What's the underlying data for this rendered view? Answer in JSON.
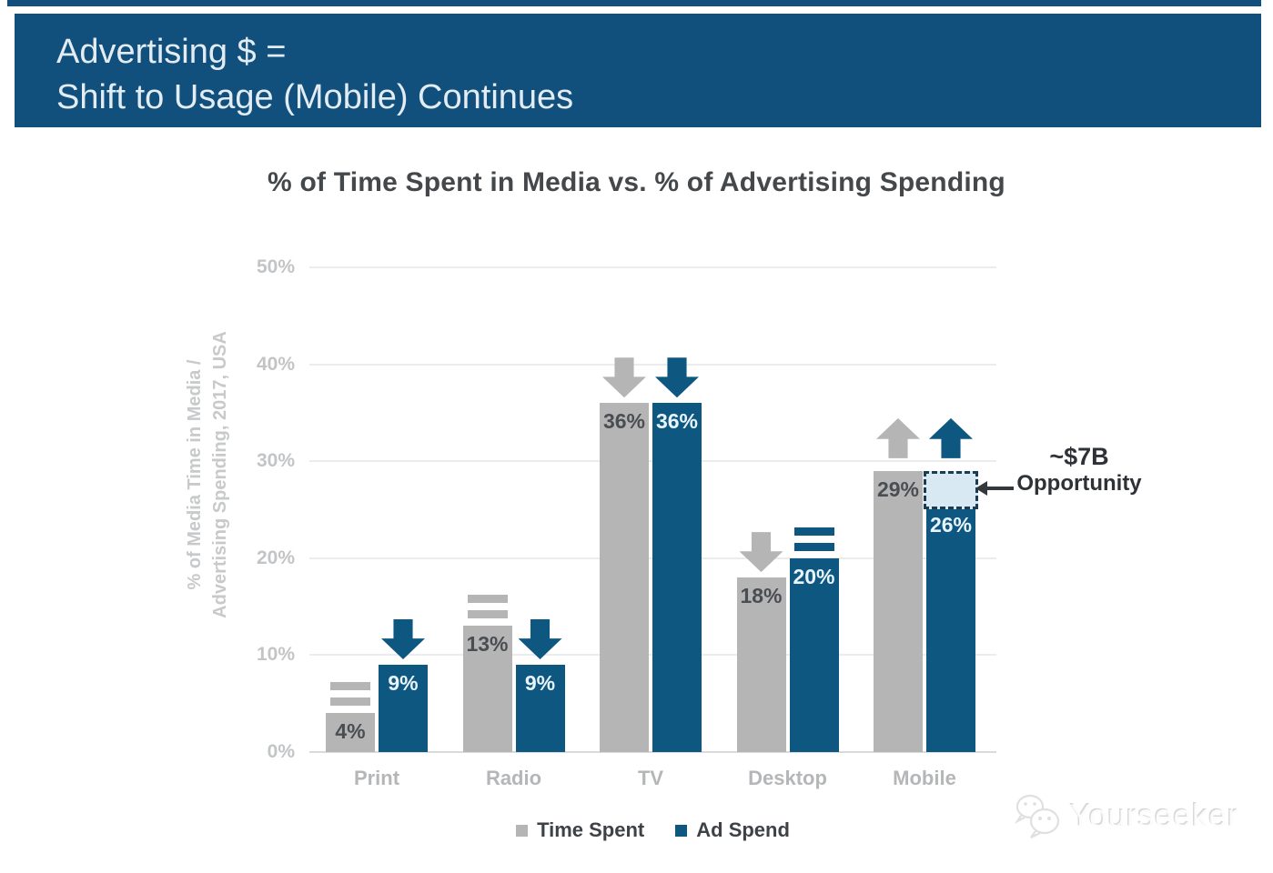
{
  "colors": {
    "banner_bg": "#11507C",
    "time_spent": "#B5B5B5",
    "ad_spend": "#0E5781",
    "opportunity_fill": "#D8E9F4",
    "opportunity_border": "#1C3C52"
  },
  "banner": {
    "line1": "Advertising $ =",
    "line2": "Shift to Usage (Mobile) Continues"
  },
  "chart_data": {
    "type": "bar",
    "title": "% of Time Spent in Media vs. % of Advertising Spending",
    "ylabel_lines": [
      "% of Media Time in Media /",
      "Advertising Spending, 2017, USA"
    ],
    "ylim": [
      0,
      50
    ],
    "yticks": [
      0,
      10,
      20,
      30,
      40,
      50
    ],
    "ytick_suffix": "%",
    "grid": true,
    "categories": [
      "Print",
      "Radio",
      "TV",
      "Desktop",
      "Mobile"
    ],
    "series": [
      {
        "name": "Time Spent",
        "color": "#B5B5B5",
        "values": [
          4,
          13,
          36,
          18,
          29
        ],
        "labels": [
          "4%",
          "13%",
          "36%",
          "18%",
          "29%"
        ],
        "trend": [
          "flat",
          "flat",
          "down",
          "down",
          "up"
        ]
      },
      {
        "name": "Ad Spend",
        "color": "#0E5781",
        "values": [
          9,
          9,
          36,
          20,
          26
        ],
        "labels": [
          "9%",
          "9%",
          "36%",
          "20%",
          "26%"
        ],
        "trend": [
          "down",
          "down",
          "down",
          "flat",
          "up"
        ]
      }
    ],
    "legend_position": "bottom",
    "annotation": {
      "line1": "~$7B",
      "line2": "Opportunity",
      "category": "Mobile",
      "series": "Ad Spend",
      "gap_from_value": 26,
      "gap_to_value": 29
    }
  },
  "watermark": {
    "text": "Yourseeker"
  }
}
